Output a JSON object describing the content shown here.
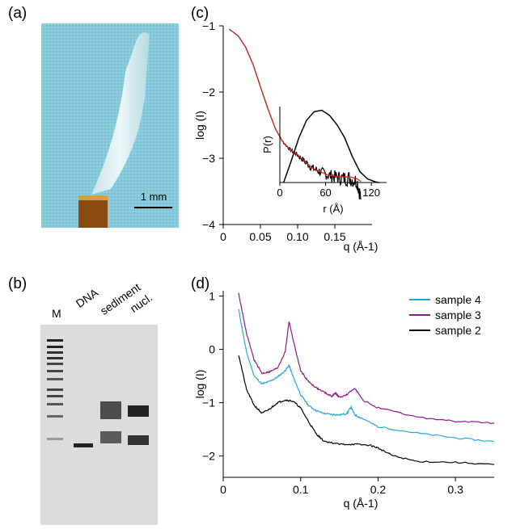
{
  "panels": {
    "a": {
      "label": "(a)",
      "scale_bar_label": "1 mm"
    },
    "b": {
      "label": "(b)",
      "lane_labels": [
        "M",
        "DNA",
        "sediment",
        "nucl."
      ]
    },
    "c": {
      "label": "(c)"
    },
    "d": {
      "label": "(d)"
    }
  },
  "colors": {
    "fit_line": "#d92020",
    "sample_4": "#29a6d6",
    "sample_3": "#8b1a8b",
    "sample_2": "#000000"
  },
  "chart_data": [
    {
      "id": "c-main",
      "type": "line",
      "xlabel": "q (Å-1)",
      "ylabel": "log (I)",
      "xlim": [
        0,
        0.2
      ],
      "ylim": [
        -4,
        -1
      ],
      "xticks": [
        "0",
        "0.05",
        "0.10",
        "0.15"
      ],
      "yticks": [
        "-1",
        "-2",
        "-3",
        "-4"
      ],
      "series": [
        {
          "role": "data",
          "color": "#000000",
          "x": [
            0.008,
            0.02,
            0.03,
            0.04,
            0.05,
            0.06,
            0.07,
            0.08,
            0.09,
            0.1,
            0.11,
            0.12,
            0.13,
            0.14,
            0.15,
            0.16,
            0.17,
            0.18,
            0.185
          ],
          "y": [
            -1.05,
            -1.15,
            -1.32,
            -1.58,
            -1.92,
            -2.25,
            -2.55,
            -2.75,
            -2.87,
            -2.95,
            -3.05,
            -3.15,
            -3.2,
            -3.25,
            -3.28,
            -3.3,
            -3.3,
            -3.35,
            -3.6
          ]
        },
        {
          "role": "fit",
          "color": "#d92020",
          "x": [
            0.008,
            0.02,
            0.03,
            0.04,
            0.05,
            0.06,
            0.07,
            0.08,
            0.09,
            0.1,
            0.11,
            0.12,
            0.13,
            0.14,
            0.15,
            0.16,
            0.17,
            0.18,
            0.185
          ],
          "y": [
            -1.05,
            -1.15,
            -1.32,
            -1.58,
            -1.92,
            -2.25,
            -2.55,
            -2.75,
            -2.87,
            -2.95,
            -3.05,
            -3.15,
            -3.2,
            -3.25,
            -3.27,
            -3.28,
            -3.28,
            -3.31,
            -3.35
          ]
        }
      ]
    },
    {
      "id": "c-inset",
      "type": "line",
      "xlabel": "r (Å)",
      "ylabel": "P(r)",
      "xlim": [
        0,
        140
      ],
      "ylim": [
        0,
        1.05
      ],
      "xticks": [
        "0",
        "60",
        "120"
      ],
      "series": [
        {
          "color": "#000000",
          "x": [
            5,
            15,
            25,
            35,
            45,
            55,
            65,
            75,
            85,
            95,
            105,
            115,
            125,
            130
          ],
          "y": [
            0.0,
            0.3,
            0.62,
            0.86,
            0.98,
            1.0,
            0.93,
            0.8,
            0.62,
            0.36,
            0.15,
            0.05,
            0.01,
            0.0
          ]
        }
      ]
    },
    {
      "id": "d",
      "type": "line",
      "xlabel": "q (Å-1)",
      "ylabel": "log (I)",
      "xlim": [
        0,
        0.35
      ],
      "ylim": [
        -2.4,
        1.1
      ],
      "xticks": [
        "0",
        "0.1",
        "0.2",
        "0.3"
      ],
      "yticks": [
        "1",
        "0",
        "-1",
        "-2"
      ],
      "legend_position": "top-right",
      "series": [
        {
          "name": "sample 4",
          "color": "#29a6d6",
          "x": [
            0.02,
            0.03,
            0.04,
            0.05,
            0.06,
            0.07,
            0.08,
            0.085,
            0.09,
            0.1,
            0.11,
            0.12,
            0.13,
            0.14,
            0.15,
            0.16,
            0.165,
            0.17,
            0.18,
            0.2,
            0.25,
            0.3,
            0.35
          ],
          "y": [
            0.75,
            -0.05,
            -0.5,
            -0.65,
            -0.6,
            -0.52,
            -0.4,
            -0.3,
            -0.5,
            -0.85,
            -1.05,
            -1.15,
            -1.2,
            -1.22,
            -1.23,
            -1.2,
            -1.08,
            -1.23,
            -1.3,
            -1.45,
            -1.57,
            -1.66,
            -1.73
          ]
        },
        {
          "name": "sample 3",
          "color": "#8b1a8b",
          "x": [
            0.02,
            0.03,
            0.04,
            0.05,
            0.06,
            0.07,
            0.08,
            0.085,
            0.09,
            0.1,
            0.11,
            0.12,
            0.13,
            0.14,
            0.145,
            0.15,
            0.16,
            0.17,
            0.18,
            0.2,
            0.25,
            0.3,
            0.35
          ],
          "y": [
            1.05,
            0.3,
            -0.2,
            -0.45,
            -0.42,
            -0.35,
            -0.05,
            0.53,
            0.2,
            -0.4,
            -0.6,
            -0.72,
            -0.8,
            -0.88,
            -0.82,
            -0.9,
            -0.85,
            -0.72,
            -0.95,
            -1.1,
            -1.27,
            -1.35,
            -1.38
          ]
        },
        {
          "name": "sample 2",
          "color": "#000000",
          "x": [
            0.02,
            0.03,
            0.04,
            0.05,
            0.06,
            0.07,
            0.08,
            0.09,
            0.1,
            0.11,
            0.12,
            0.13,
            0.15,
            0.17,
            0.19,
            0.2,
            0.22,
            0.25,
            0.3,
            0.35
          ],
          "y": [
            -0.1,
            -0.75,
            -1.05,
            -1.2,
            -1.12,
            -1.0,
            -0.95,
            -0.97,
            -1.1,
            -1.35,
            -1.58,
            -1.72,
            -1.78,
            -1.78,
            -1.8,
            -1.85,
            -2.0,
            -2.1,
            -2.12,
            -2.16
          ]
        }
      ]
    }
  ]
}
